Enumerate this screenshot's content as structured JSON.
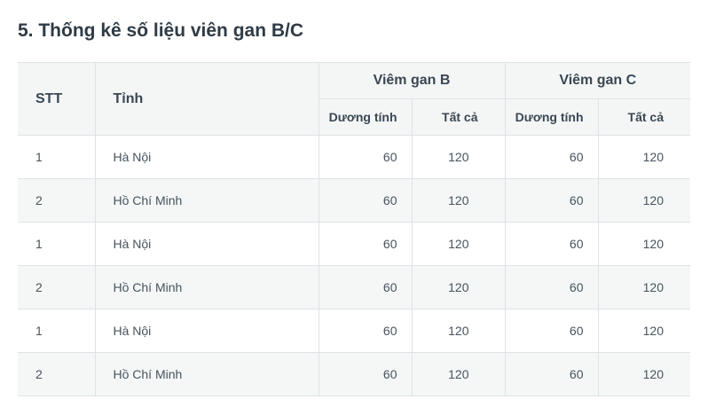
{
  "page": {
    "title": "5. Thống kê số liệu viên gan B/C"
  },
  "table": {
    "headers": {
      "stt": "STT",
      "tinh": "Tỉnh",
      "hep_b": "Viêm gan B",
      "hep_c": "Viêm gan C",
      "b_positive": "Dương tính",
      "b_total": "Tất cả",
      "c_positive": "Dương tính",
      "c_total": "Tất cả"
    },
    "rows": [
      {
        "stt": "1",
        "tinh": "Hà Nội",
        "b_positive": "60",
        "b_total": "120",
        "c_positive": "60",
        "c_total": "120"
      },
      {
        "stt": "2",
        "tinh": "Hồ Chí Minh",
        "b_positive": "60",
        "b_total": "120",
        "c_positive": "60",
        "c_total": "120"
      },
      {
        "stt": "1",
        "tinh": "Hà Nội",
        "b_positive": "60",
        "b_total": "120",
        "c_positive": "60",
        "c_total": "120"
      },
      {
        "stt": "2",
        "tinh": "Hồ Chí Minh",
        "b_positive": "60",
        "b_total": "120",
        "c_positive": "60",
        "c_total": "120"
      },
      {
        "stt": "1",
        "tinh": "Hà Nội",
        "b_positive": "60",
        "b_total": "120",
        "c_positive": "60",
        "c_total": "120"
      },
      {
        "stt": "2",
        "tinh": "Hồ Chí Minh",
        "b_positive": "60",
        "b_total": "120",
        "c_positive": "60",
        "c_total": "120"
      }
    ]
  }
}
